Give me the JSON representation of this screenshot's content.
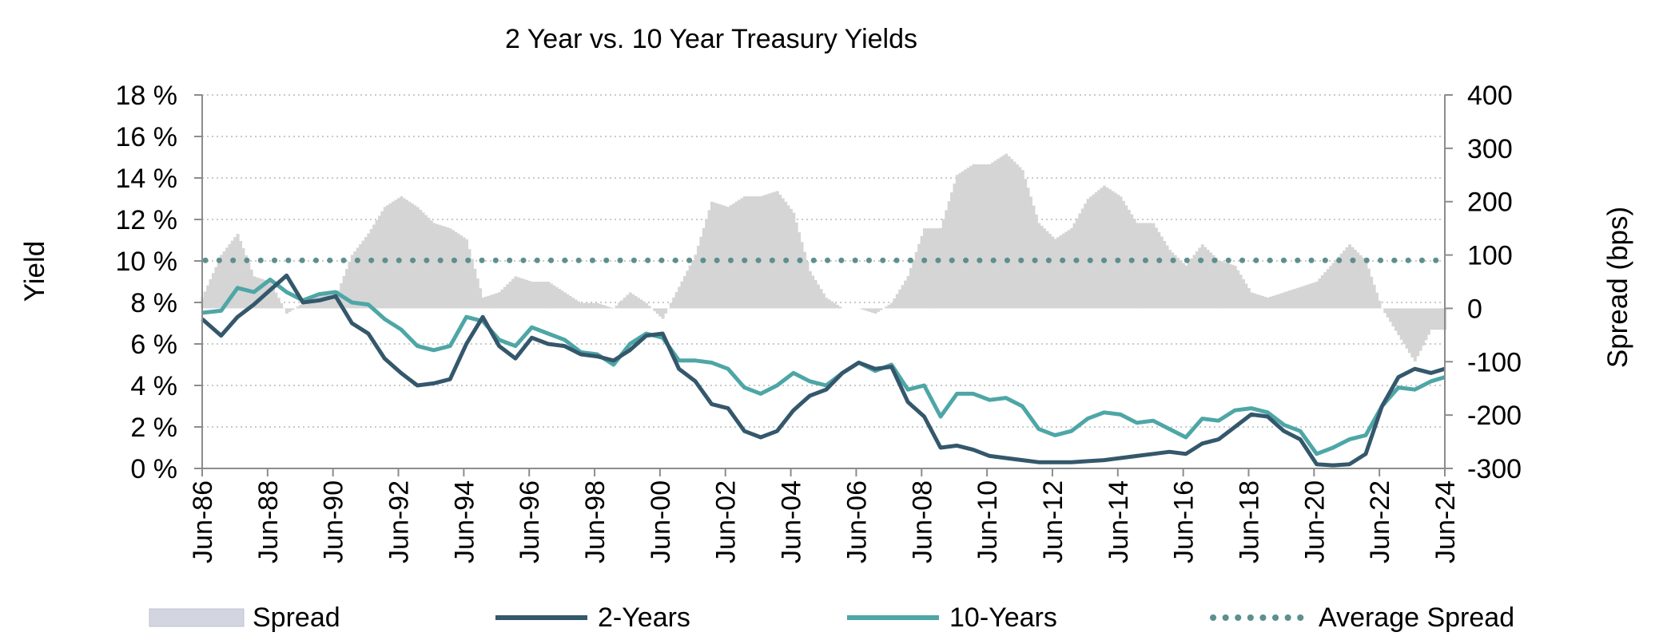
{
  "chart_data": {
    "type": "line",
    "title": "2 Year vs. 10 Year Treasury Yields",
    "ylabel": "Yield",
    "y2label": "Spread (bps)",
    "ylim": [
      0,
      18
    ],
    "y2lim": [
      -300,
      400
    ],
    "xlim": [
      1986.42,
      2024.42
    ],
    "grid": true,
    "legend_position": "bottom",
    "x_ticks": [
      {
        "x": 1986.42,
        "label": "Jun-86"
      },
      {
        "x": 1988.42,
        "label": "Jun-88"
      },
      {
        "x": 1990.42,
        "label": "Jun-90"
      },
      {
        "x": 1992.42,
        "label": "Jun-92"
      },
      {
        "x": 1994.42,
        "label": "Jun-94"
      },
      {
        "x": 1996.42,
        "label": "Jun-96"
      },
      {
        "x": 1998.42,
        "label": "Jun-98"
      },
      {
        "x": 2000.42,
        "label": "Jun-00"
      },
      {
        "x": 2002.42,
        "label": "Jun-02"
      },
      {
        "x": 2004.42,
        "label": "Jun-04"
      },
      {
        "x": 2006.42,
        "label": "Jun-06"
      },
      {
        "x": 2008.42,
        "label": "Jun-08"
      },
      {
        "x": 2010.42,
        "label": "Jun-10"
      },
      {
        "x": 2012.42,
        "label": "Jun-12"
      },
      {
        "x": 2014.42,
        "label": "Jun-14"
      },
      {
        "x": 2016.42,
        "label": "Jun-16"
      },
      {
        "x": 2018.42,
        "label": "Jun-18"
      },
      {
        "x": 2020.42,
        "label": "Jun-20"
      },
      {
        "x": 2022.42,
        "label": "Jun-22"
      },
      {
        "x": 2024.42,
        "label": "Jun-24"
      }
    ],
    "y_ticks": [
      {
        "v": 0,
        "label": "0 %"
      },
      {
        "v": 2,
        "label": "2 %"
      },
      {
        "v": 4,
        "label": "4 %"
      },
      {
        "v": 6,
        "label": "6 %"
      },
      {
        "v": 8,
        "label": "8 %"
      },
      {
        "v": 10,
        "label": "10 %"
      },
      {
        "v": 12,
        "label": "12 %"
      },
      {
        "v": 14,
        "label": "14 %"
      },
      {
        "v": 16,
        "label": "16 %"
      },
      {
        "v": 18,
        "label": "18 %"
      }
    ],
    "y2_ticks": [
      {
        "v": 400,
        "label": "400"
      },
      {
        "v": 300,
        "label": "300"
      },
      {
        "v": 200,
        "label": "200"
      },
      {
        "v": 100,
        "label": "100"
      },
      {
        "v": 0,
        "label": "0"
      },
      {
        "v": -100,
        "label": "-100"
      },
      {
        "v": -200,
        "label": "-200"
      },
      {
        "v": -300,
        "label": "-300"
      }
    ],
    "x": [
      1986.42,
      1987.0,
      1987.5,
      1988.0,
      1988.5,
      1989.0,
      1989.5,
      1990.0,
      1990.5,
      1991.0,
      1991.5,
      1992.0,
      1992.5,
      1993.0,
      1993.5,
      1994.0,
      1994.5,
      1995.0,
      1995.5,
      1996.0,
      1996.5,
      1997.0,
      1997.5,
      1998.0,
      1998.5,
      1999.0,
      1999.5,
      2000.0,
      2000.5,
      2001.0,
      2001.5,
      2002.0,
      2002.5,
      2003.0,
      2003.5,
      2004.0,
      2004.5,
      2005.0,
      2005.5,
      2006.0,
      2006.5,
      2007.0,
      2007.5,
      2008.0,
      2008.5,
      2009.0,
      2009.5,
      2010.0,
      2010.5,
      2011.0,
      2011.5,
      2012.0,
      2012.5,
      2013.0,
      2013.5,
      2014.0,
      2014.5,
      2015.0,
      2015.5,
      2016.0,
      2016.5,
      2017.0,
      2017.5,
      2018.0,
      2018.5,
      2019.0,
      2019.5,
      2020.0,
      2020.5,
      2021.0,
      2021.5,
      2022.0,
      2022.5,
      2023.0,
      2023.5,
      2024.0,
      2024.42
    ],
    "series": [
      {
        "name": "2-Years",
        "color": "#34576b",
        "values": [
          7.2,
          6.4,
          7.3,
          7.9,
          8.6,
          9.3,
          8.0,
          8.1,
          8.3,
          7.0,
          6.5,
          5.3,
          4.6,
          4.0,
          4.1,
          4.3,
          6.0,
          7.3,
          5.9,
          5.3,
          6.3,
          6.0,
          5.9,
          5.5,
          5.4,
          5.2,
          5.7,
          6.4,
          6.5,
          4.8,
          4.2,
          3.1,
          2.9,
          1.8,
          1.5,
          1.8,
          2.8,
          3.5,
          3.8,
          4.6,
          5.1,
          4.8,
          4.9,
          3.2,
          2.5,
          1.0,
          1.1,
          0.9,
          0.6,
          0.5,
          0.4,
          0.3,
          0.3,
          0.3,
          0.35,
          0.4,
          0.5,
          0.6,
          0.7,
          0.8,
          0.7,
          1.2,
          1.4,
          2.0,
          2.6,
          2.5,
          1.8,
          1.4,
          0.2,
          0.15,
          0.2,
          0.7,
          3.0,
          4.4,
          4.8,
          4.6,
          4.8
        ]
      },
      {
        "name": "10-Years",
        "color": "#4ea6a6",
        "values": [
          7.5,
          7.6,
          8.7,
          8.5,
          9.1,
          8.5,
          8.1,
          8.4,
          8.5,
          8.0,
          7.9,
          7.2,
          6.7,
          5.9,
          5.7,
          5.9,
          7.3,
          7.1,
          6.2,
          5.9,
          6.8,
          6.5,
          6.2,
          5.6,
          5.5,
          5.0,
          6.0,
          6.5,
          6.3,
          5.2,
          5.2,
          5.1,
          4.8,
          3.9,
          3.6,
          4.0,
          4.6,
          4.2,
          4.0,
          4.6,
          5.1,
          4.7,
          5.0,
          3.8,
          4.0,
          2.5,
          3.6,
          3.6,
          3.3,
          3.4,
          3.0,
          1.9,
          1.6,
          1.8,
          2.4,
          2.7,
          2.6,
          2.2,
          2.3,
          1.9,
          1.5,
          2.4,
          2.3,
          2.8,
          2.9,
          2.7,
          2.1,
          1.8,
          0.7,
          1.0,
          1.4,
          1.6,
          3.0,
          3.9,
          3.8,
          4.2,
          4.4
        ]
      }
    ],
    "spread": {
      "name": "Spread",
      "color": "#d5d5d5",
      "values": [
        20,
        100,
        140,
        60,
        50,
        -10,
        10,
        30,
        20,
        100,
        140,
        190,
        210,
        190,
        160,
        150,
        130,
        20,
        30,
        60,
        50,
        50,
        30,
        10,
        10,
        0,
        30,
        10,
        -20,
        40,
        100,
        200,
        190,
        210,
        210,
        220,
        180,
        70,
        20,
        0,
        0,
        -10,
        10,
        60,
        150,
        150,
        250,
        270,
        270,
        290,
        260,
        160,
        130,
        150,
        205,
        230,
        210,
        160,
        160,
        110,
        80,
        120,
        90,
        80,
        30,
        20,
        30,
        40,
        50,
        85,
        120,
        90,
        0,
        -50,
        -100,
        -40,
        -40
      ]
    },
    "average_spread": {
      "name": "Average Spread",
      "value": 90,
      "color": "#5e8f8f"
    },
    "legend": [
      "Spread",
      "2-Years",
      "10-Years",
      "Average Spread"
    ]
  }
}
